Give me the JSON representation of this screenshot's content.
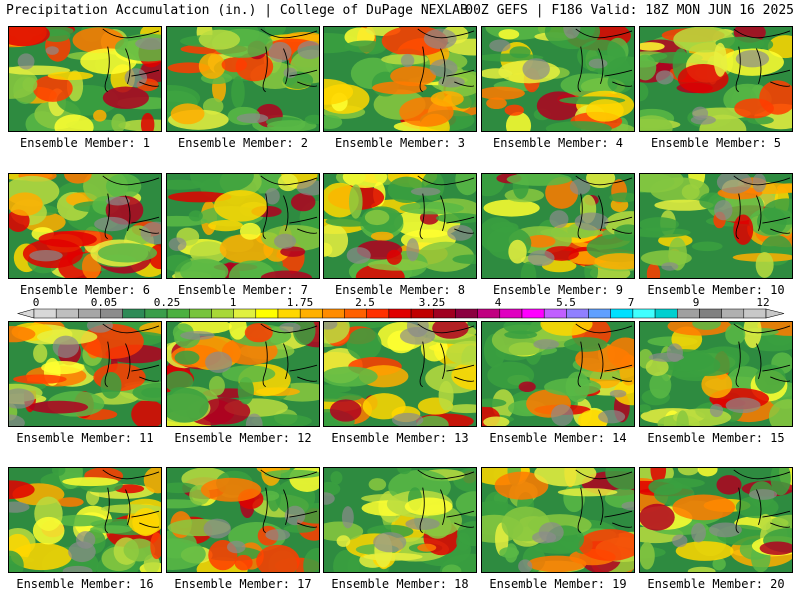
{
  "header": {
    "left": "Precipitation Accumulation (in.) | College of DuPage NEXLAB",
    "right": "00Z GEFS | F186 Valid: 18Z MON JUN 16 2025"
  },
  "panels": [
    {
      "caption": "Ensemble Member: 1"
    },
    {
      "caption": "Ensemble Member: 2"
    },
    {
      "caption": "Ensemble Member: 3"
    },
    {
      "caption": "Ensemble Member: 4"
    },
    {
      "caption": "Ensemble Member: 5"
    },
    {
      "caption": "Ensemble Member: 6"
    },
    {
      "caption": "Ensemble Member: 7"
    },
    {
      "caption": "Ensemble Member: 8"
    },
    {
      "caption": "Ensemble Member: 9"
    },
    {
      "caption": "Ensemble Member: 10"
    },
    {
      "caption": "Ensemble Member: 11"
    },
    {
      "caption": "Ensemble Member: 12"
    },
    {
      "caption": "Ensemble Member: 13"
    },
    {
      "caption": "Ensemble Member: 14"
    },
    {
      "caption": "Ensemble Member: 15"
    },
    {
      "caption": "Ensemble Member: 16"
    },
    {
      "caption": "Ensemble Member: 17"
    },
    {
      "caption": "Ensemble Member: 18"
    },
    {
      "caption": "Ensemble Member: 19"
    },
    {
      "caption": "Ensemble Member: 20"
    }
  ],
  "colorbar": {
    "labels": [
      "0",
      "0.05",
      "0.25",
      "1",
      "1.75",
      "2.5",
      "3.25",
      "4",
      "5.5",
      "7",
      "9",
      "12"
    ],
    "colors": [
      "#d8d8d8",
      "#bfbfbf",
      "#a6a6a6",
      "#8c8c8c",
      "#2e8b57",
      "#3a9e4a",
      "#4cb040",
      "#78c43c",
      "#a8d838",
      "#e0f040",
      "#ffff00",
      "#ffd700",
      "#ffb000",
      "#ff8c00",
      "#ff6000",
      "#ff3000",
      "#e00000",
      "#c00000",
      "#a00020",
      "#8b0040",
      "#c00080",
      "#e000c0",
      "#ff00ff",
      "#c060ff",
      "#9080ff",
      "#60a0ff",
      "#00e0ff",
      "#40ffff",
      "#00d0d0",
      "#a0a0a0",
      "#808080",
      "#b0b0b0",
      "#c8c8c8"
    ]
  }
}
